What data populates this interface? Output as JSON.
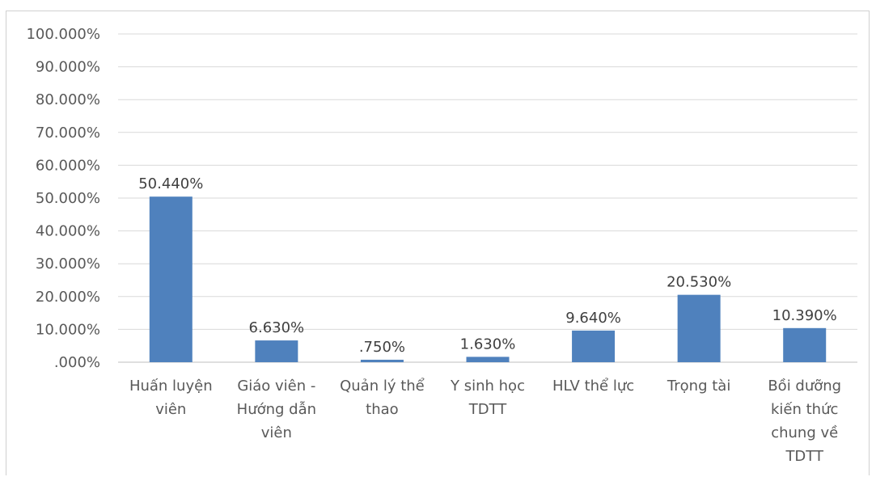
{
  "chart_data": {
    "type": "bar",
    "title": "",
    "xlabel": "",
    "ylabel": "",
    "ylim": [
      0,
      100
    ],
    "ytick_step": 10,
    "yticks": [
      "100.000%",
      "90.000%",
      "80.000%",
      "70.000%",
      "60.000%",
      "50.000%",
      "40.000%",
      "30.000%",
      "20.000%",
      "10.000%",
      ".000%"
    ],
    "grid": true,
    "legend": "none",
    "bar_color": "#4f81bd",
    "categories": [
      [
        "Huấn luyện",
        "viên"
      ],
      [
        "Giáo viên -",
        "Hướng dẫn",
        "viên"
      ],
      [
        "Quản lý thể",
        "thao"
      ],
      [
        "Y sinh học",
        "TDTT"
      ],
      [
        "HLV thể lực"
      ],
      [
        "Trọng tài"
      ],
      [
        "Bồi dưỡng",
        "kiến thức",
        "chung về",
        "TDTT"
      ]
    ],
    "values": [
      50.44,
      6.63,
      0.75,
      1.63,
      9.64,
      20.53,
      10.39
    ],
    "data_labels": [
      "50.440%",
      "6.630%",
      ".750%",
      "1.630%",
      "9.640%",
      "20.530%",
      "10.390%"
    ]
  }
}
